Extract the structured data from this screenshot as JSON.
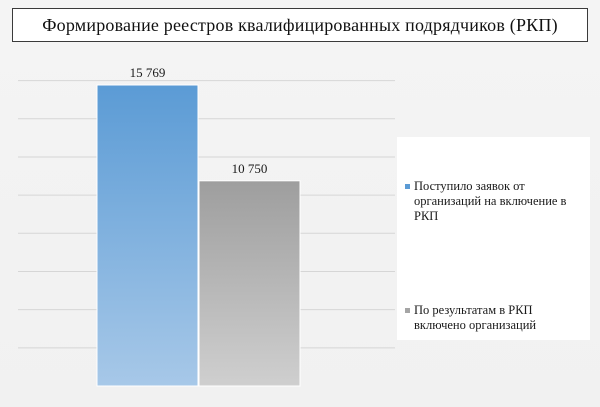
{
  "title": "Формирование реестров квалифицированных подрядчиков (РКП)",
  "colors": {
    "series_1_top": "#5b9bd5",
    "series_1_bottom": "#a7c8e8",
    "series_2_top": "#9e9e9e",
    "series_2_bottom": "#cfcfcf",
    "gridline": "#d6d6d6",
    "swatch_1": "#5b9bd5",
    "swatch_2": "#a5a5a5"
  },
  "chart_data": {
    "type": "bar",
    "categories": [
      ""
    ],
    "series": [
      {
        "name": "Поступило  заявок  от организаций на включение в РКП",
        "values": [
          15769
        ],
        "label": "15 769"
      },
      {
        "name": "По результатам в РКП включено организаций",
        "values": [
          10750
        ],
        "label": "10 750"
      }
    ],
    "title": "Формирование реестров квалифицированных подрядчиков (РКП)",
    "xlabel": "",
    "ylabel": "",
    "ylim": [
      0,
      18000
    ],
    "grid": true,
    "legend_position": "right"
  }
}
